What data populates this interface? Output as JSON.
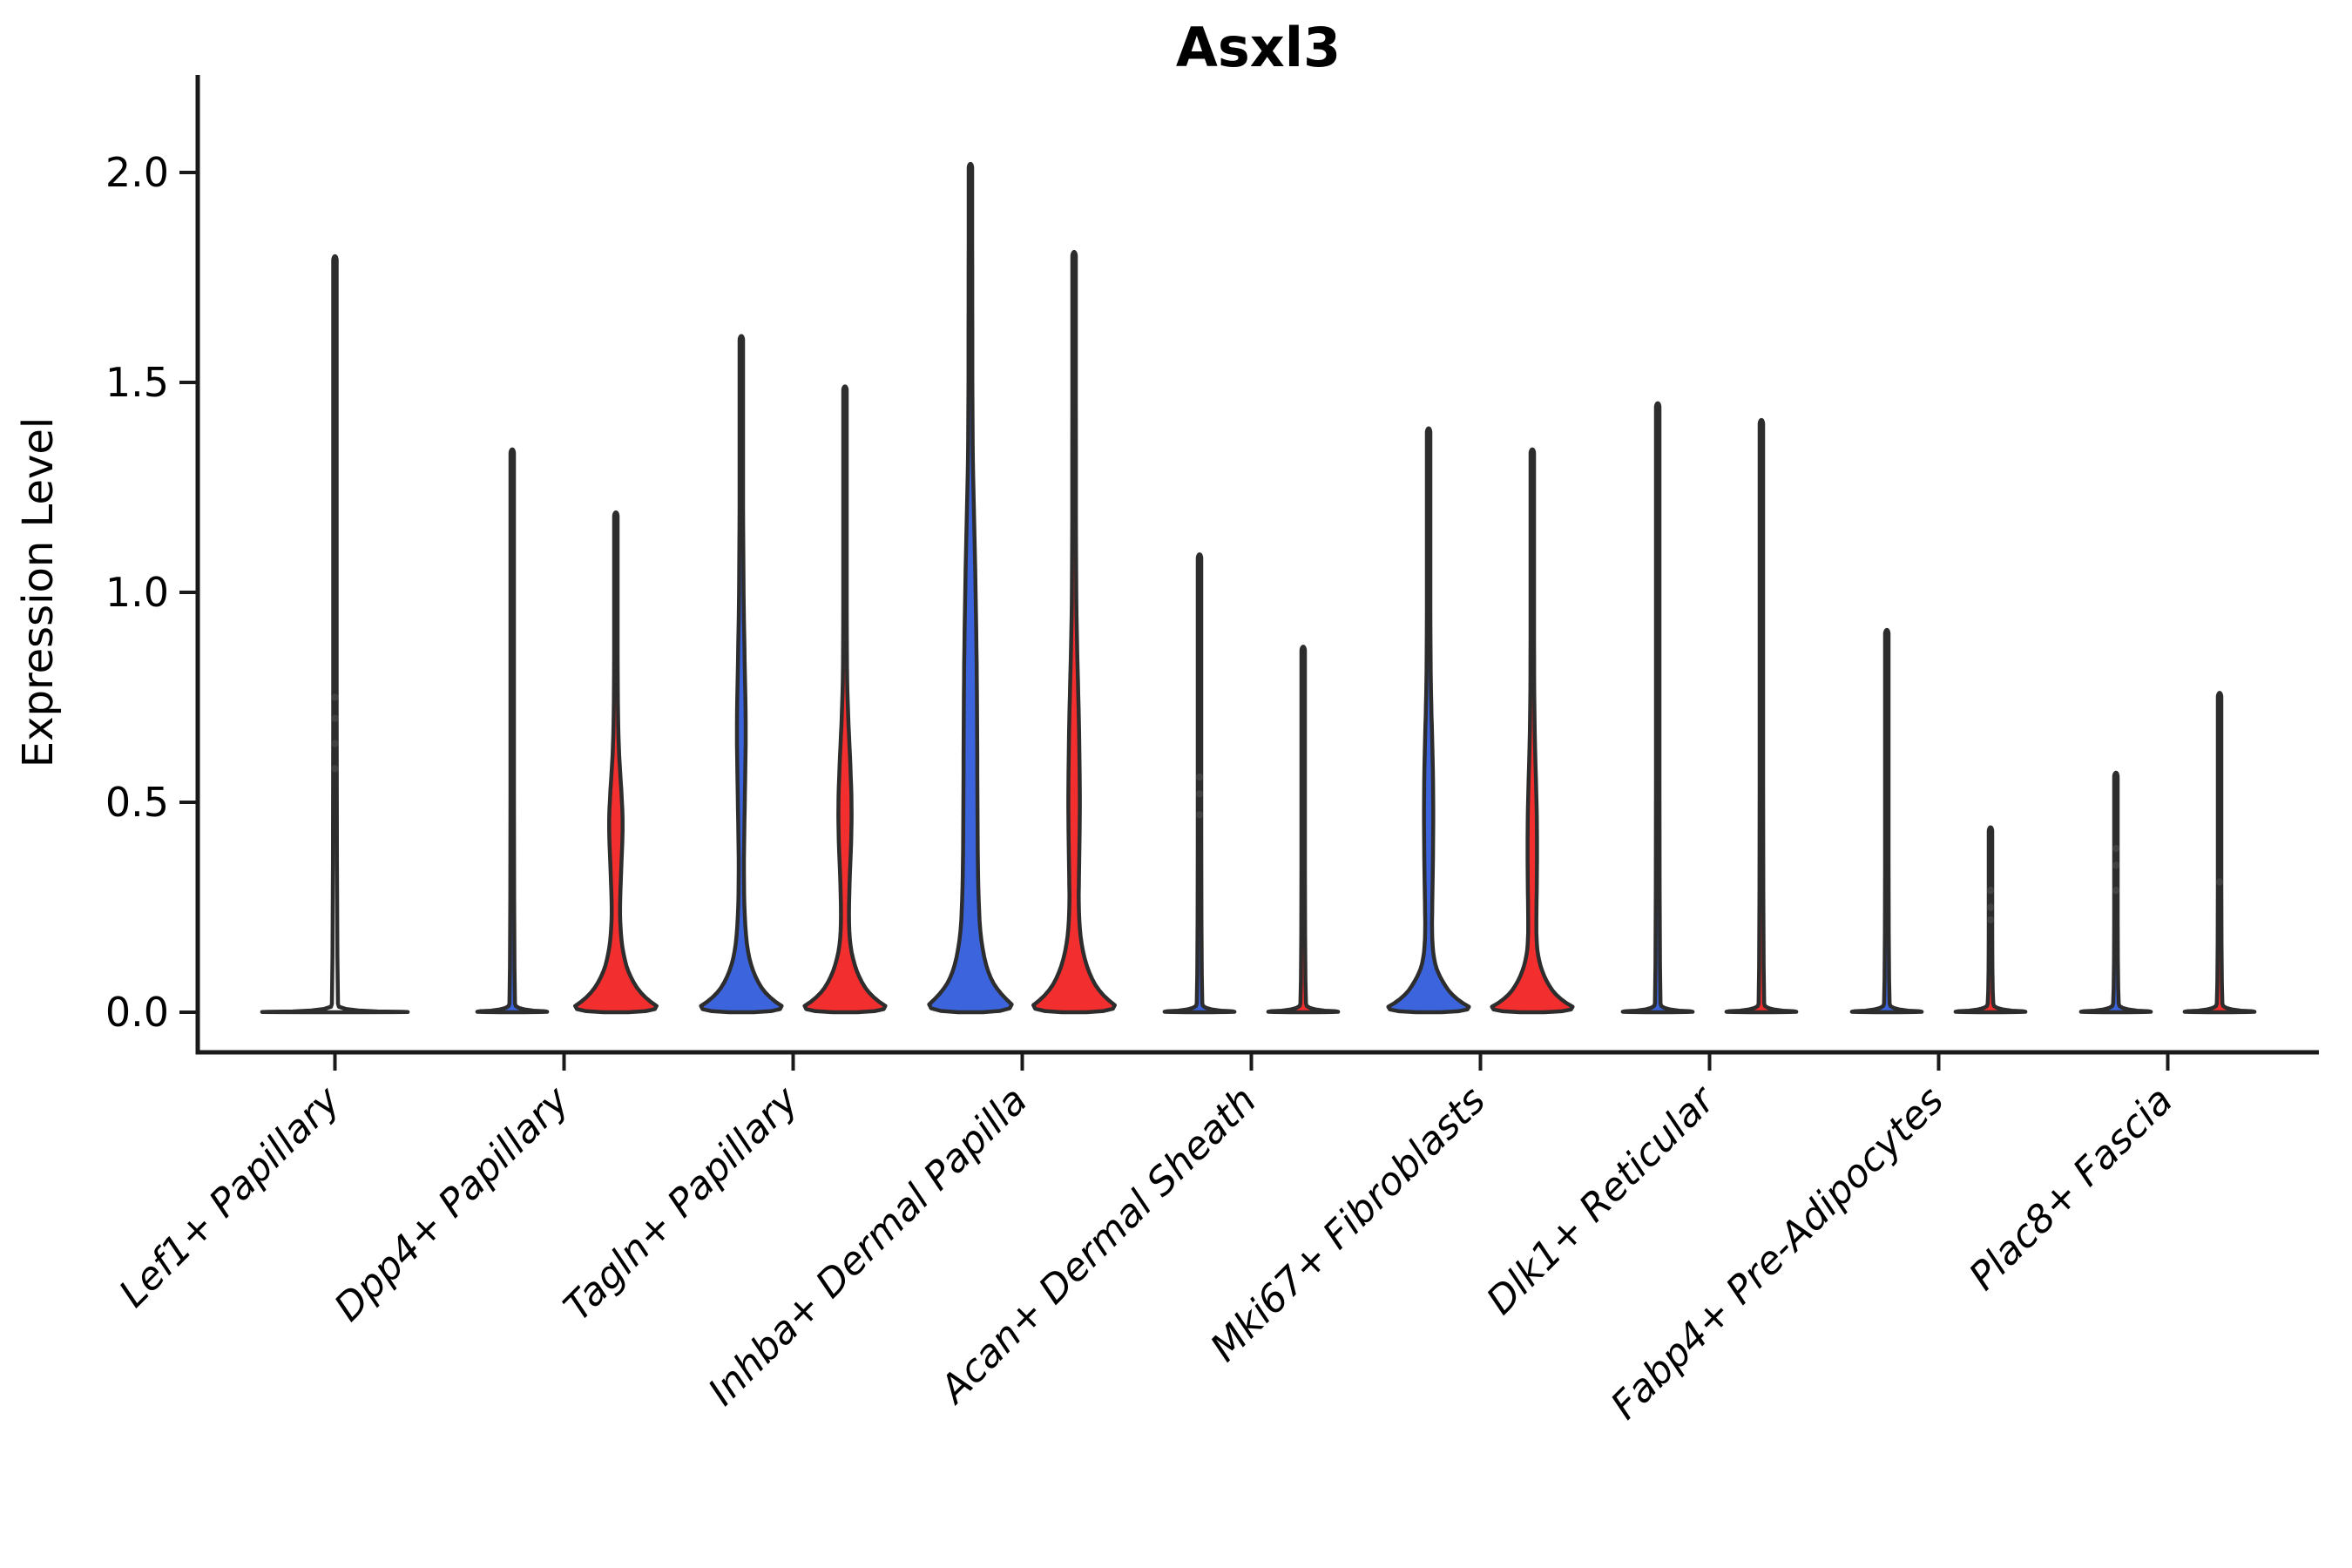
{
  "chart_data": {
    "type": "violin",
    "title": "Asxl3",
    "ylabel": "Expression Level",
    "xlabel": "",
    "ylim": [
      0.0,
      2.0
    ],
    "yticks": [
      "0.0",
      "0.5",
      "1.0",
      "1.5",
      "2.0"
    ],
    "ytick_values": [
      0.0,
      0.5,
      1.0,
      1.5,
      2.0
    ],
    "grid": "off",
    "legend": "none",
    "colors": {
      "blue": "#3C64DC",
      "red": "#F22E2E",
      "none": "#FFFFFF",
      "outline": "#2D2D2D",
      "axis": "#1A1A1A",
      "dot": "#454545"
    },
    "categories": [
      "Lef1+ Papillary",
      "Dpp4+ Papillary",
      "Tagln+ Papillary",
      "Inhba+ Dermal Papilla",
      "Acan+ Dermal Sheath",
      "Mki67+ Fibroblasts",
      "Dlk1+ Reticular",
      "Fabp4+ Pre-Adipocytes",
      "Plac8+ Fascia"
    ],
    "violins": [
      {
        "cat": 0,
        "side": "center",
        "group": "none",
        "wide": true,
        "max": 1.8,
        "profile": [
          [
            0,
            1
          ],
          [
            0.003,
            0.05
          ],
          [
            0.03,
            0.017
          ]
        ],
        "dots": [
          0.58,
          0.64,
          0.7,
          0.75
        ]
      },
      {
        "cat": 1,
        "side": "left",
        "group": "blue",
        "max": 1.34,
        "profile": [
          [
            0,
            1
          ],
          [
            0.006,
            0.09
          ],
          [
            0.03,
            0.035
          ]
        ],
        "dots": []
      },
      {
        "cat": 1,
        "side": "right",
        "group": "red",
        "max": 1.19,
        "profile": [
          [
            0,
            1
          ],
          [
            0.04,
            0.52
          ],
          [
            0.09,
            0.26
          ],
          [
            0.145,
            0.135
          ],
          [
            0.21,
            0.085
          ],
          [
            0.27,
            0.085
          ],
          [
            0.33,
            0.105
          ],
          [
            0.45,
            0.145
          ],
          [
            0.54,
            0.105
          ],
          [
            0.62,
            0.06
          ],
          [
            0.72,
            0.04
          ],
          [
            0.85,
            0.035
          ]
        ],
        "dots": []
      },
      {
        "cat": 2,
        "side": "left",
        "group": "blue",
        "max": 1.61,
        "profile": [
          [
            0,
            1
          ],
          [
            0.04,
            0.5
          ],
          [
            0.09,
            0.25
          ],
          [
            0.15,
            0.115
          ],
          [
            0.24,
            0.06
          ],
          [
            0.35,
            0.05
          ],
          [
            0.47,
            0.065
          ],
          [
            0.6,
            0.085
          ],
          [
            0.7,
            0.09
          ],
          [
            0.82,
            0.07
          ],
          [
            0.95,
            0.05
          ],
          [
            1.08,
            0.04
          ],
          [
            1.2,
            0.035
          ]
        ],
        "dots": []
      },
      {
        "cat": 2,
        "side": "right",
        "group": "red",
        "max": 1.49,
        "profile": [
          [
            0,
            1
          ],
          [
            0.04,
            0.5
          ],
          [
            0.09,
            0.25
          ],
          [
            0.15,
            0.11
          ],
          [
            0.22,
            0.075
          ],
          [
            0.32,
            0.095
          ],
          [
            0.42,
            0.13
          ],
          [
            0.5,
            0.135
          ],
          [
            0.6,
            0.105
          ],
          [
            0.7,
            0.065
          ],
          [
            0.8,
            0.04
          ],
          [
            0.95,
            0.035
          ]
        ],
        "dots": []
      },
      {
        "cat": 3,
        "side": "left",
        "group": "blue",
        "max": 2.02,
        "profile": [
          [
            0,
            1
          ],
          [
            0.05,
            0.55
          ],
          [
            0.1,
            0.33
          ],
          [
            0.18,
            0.2
          ],
          [
            0.28,
            0.16
          ],
          [
            0.4,
            0.145
          ],
          [
            0.55,
            0.14
          ],
          [
            0.7,
            0.135
          ],
          [
            0.85,
            0.125
          ],
          [
            1.0,
            0.105
          ],
          [
            1.15,
            0.08
          ],
          [
            1.3,
            0.05
          ],
          [
            1.45,
            0.04
          ],
          [
            1.6,
            0.038
          ],
          [
            1.8,
            0.036
          ]
        ],
        "dots": []
      },
      {
        "cat": 3,
        "side": "right",
        "group": "red",
        "max": 1.81,
        "profile": [
          [
            0,
            1
          ],
          [
            0.045,
            0.52
          ],
          [
            0.1,
            0.27
          ],
          [
            0.17,
            0.13
          ],
          [
            0.25,
            0.09
          ],
          [
            0.33,
            0.1
          ],
          [
            0.45,
            0.115
          ],
          [
            0.55,
            0.115
          ],
          [
            0.68,
            0.1
          ],
          [
            0.8,
            0.075
          ],
          [
            0.93,
            0.05
          ],
          [
            1.05,
            0.04
          ],
          [
            1.25,
            0.036
          ]
        ],
        "dots": []
      },
      {
        "cat": 4,
        "side": "left",
        "group": "blue",
        "max": 1.09,
        "profile": [
          [
            0,
            1
          ],
          [
            0.006,
            0.09
          ],
          [
            0.03,
            0.035
          ]
        ],
        "dots": [
          0.47,
          0.52,
          0.56
        ]
      },
      {
        "cat": 4,
        "side": "right",
        "group": "red",
        "max": 0.87,
        "profile": [
          [
            0,
            1
          ],
          [
            0.006,
            0.09
          ],
          [
            0.03,
            0.035
          ]
        ],
        "dots": []
      },
      {
        "cat": 5,
        "side": "left",
        "group": "blue",
        "max": 1.39,
        "profile": [
          [
            0,
            1
          ],
          [
            0.035,
            0.5
          ],
          [
            0.08,
            0.24
          ],
          [
            0.12,
            0.11
          ],
          [
            0.18,
            0.065
          ],
          [
            0.27,
            0.075
          ],
          [
            0.38,
            0.09
          ],
          [
            0.5,
            0.095
          ],
          [
            0.62,
            0.08
          ],
          [
            0.72,
            0.055
          ],
          [
            0.82,
            0.04
          ],
          [
            0.95,
            0.035
          ]
        ],
        "dots": []
      },
      {
        "cat": 5,
        "side": "right",
        "group": "red",
        "max": 1.34,
        "profile": [
          [
            0,
            1
          ],
          [
            0.035,
            0.5
          ],
          [
            0.08,
            0.25
          ],
          [
            0.13,
            0.115
          ],
          [
            0.18,
            0.08
          ],
          [
            0.25,
            0.085
          ],
          [
            0.35,
            0.095
          ],
          [
            0.45,
            0.095
          ],
          [
            0.55,
            0.075
          ],
          [
            0.65,
            0.05
          ],
          [
            0.78,
            0.037
          ],
          [
            0.95,
            0.035
          ]
        ],
        "dots": []
      },
      {
        "cat": 6,
        "side": "left",
        "group": "blue",
        "max": 1.45,
        "profile": [
          [
            0,
            1
          ],
          [
            0.006,
            0.09
          ],
          [
            0.03,
            0.035
          ]
        ],
        "dots": []
      },
      {
        "cat": 6,
        "side": "right",
        "group": "red",
        "max": 1.41,
        "profile": [
          [
            0,
            1
          ],
          [
            0.006,
            0.09
          ],
          [
            0.03,
            0.035
          ]
        ],
        "dots": []
      },
      {
        "cat": 7,
        "side": "left",
        "group": "blue",
        "max": 0.91,
        "profile": [
          [
            0,
            1
          ],
          [
            0.006,
            0.09
          ],
          [
            0.03,
            0.035
          ]
        ],
        "dots": []
      },
      {
        "cat": 7,
        "side": "right",
        "group": "red",
        "max": 0.44,
        "profile": [
          [
            0,
            1
          ],
          [
            0.006,
            0.09
          ],
          [
            0.03,
            0.035
          ]
        ],
        "dots": [
          0.29,
          0.25,
          0.22
        ]
      },
      {
        "cat": 8,
        "side": "left",
        "group": "blue",
        "max": 0.57,
        "profile": [
          [
            0,
            1
          ],
          [
            0.006,
            0.09
          ],
          [
            0.03,
            0.035
          ]
        ],
        "dots": [
          0.39,
          0.35,
          0.29
        ]
      },
      {
        "cat": 8,
        "side": "right",
        "group": "red",
        "max": 0.76,
        "profile": [
          [
            0,
            1
          ],
          [
            0.006,
            0.09
          ],
          [
            0.03,
            0.035
          ]
        ],
        "dots": [
          0.31
        ]
      }
    ]
  }
}
